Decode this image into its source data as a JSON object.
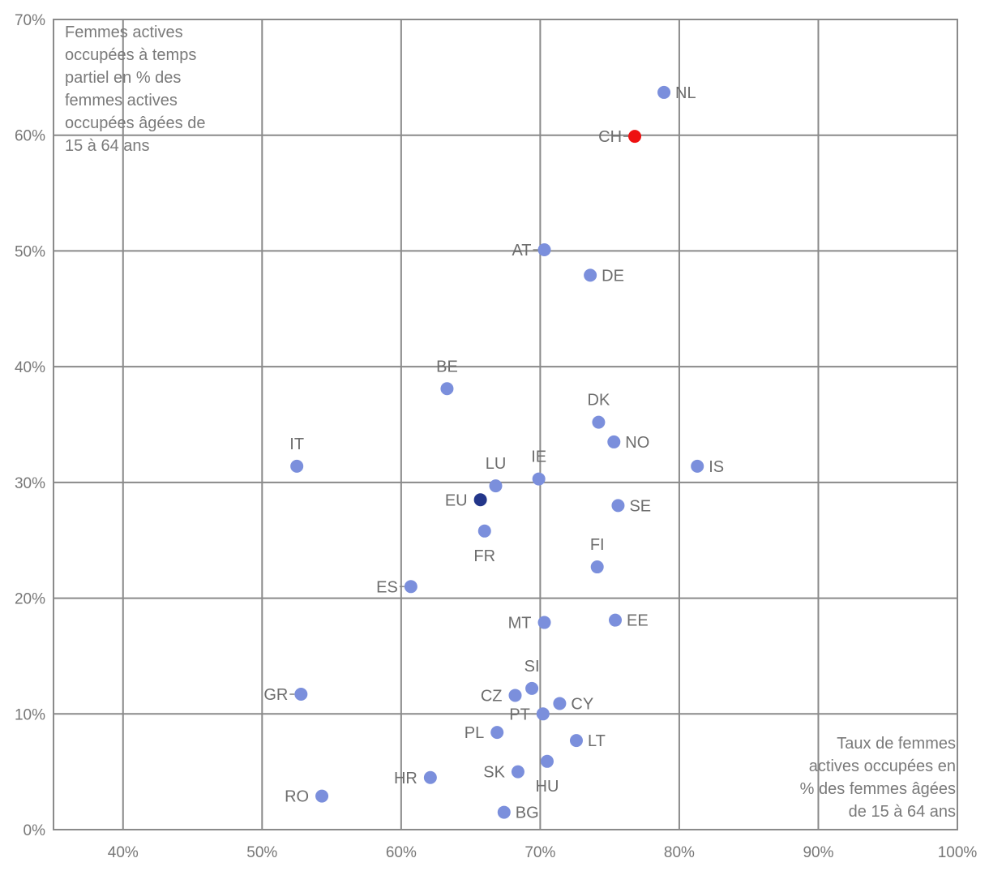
{
  "chart_data": {
    "type": "scatter",
    "xlabel": [
      "Taux de femmes",
      "actives occupées en",
      "% des femmes âgées",
      "de 15 à 64 ans"
    ],
    "ylabel": [
      "Femmes actives",
      "occupées à temps",
      "partiel en % des",
      "femmes actives",
      "occupées âgées de",
      "15 à 64 ans"
    ],
    "xlim": [
      35,
      100
    ],
    "ylim": [
      0,
      70
    ],
    "x_ticks": [
      40,
      50,
      60,
      70,
      80,
      90,
      100
    ],
    "y_ticks": [
      0,
      10,
      20,
      30,
      40,
      50,
      60,
      70
    ],
    "x_tick_labels": [
      "40%",
      "50%",
      "60%",
      "70%",
      "80%",
      "90%",
      "100%"
    ],
    "y_tick_labels": [
      "0%",
      "10%",
      "20%",
      "30%",
      "40%",
      "50%",
      "60%",
      "70%"
    ],
    "grid": true,
    "colors": {
      "default": "#7b8fdc",
      "highlight": "#ee1111",
      "aggregate": "#23368a"
    },
    "points": [
      {
        "label": "NL",
        "x": 78.9,
        "y": 63.7,
        "style": "default",
        "pos": "right"
      },
      {
        "label": "CH",
        "x": 76.8,
        "y": 59.9,
        "style": "highlight",
        "pos": "left",
        "leader": true
      },
      {
        "label": "AT",
        "x": 70.3,
        "y": 50.1,
        "style": "default",
        "pos": "left",
        "leader": true
      },
      {
        "label": "DE",
        "x": 73.6,
        "y": 47.9,
        "style": "default",
        "pos": "right"
      },
      {
        "label": "BE",
        "x": 63.3,
        "y": 38.1,
        "style": "default",
        "pos": "above"
      },
      {
        "label": "DK",
        "x": 74.2,
        "y": 35.2,
        "style": "default",
        "pos": "above"
      },
      {
        "label": "NO",
        "x": 75.3,
        "y": 33.5,
        "style": "default",
        "pos": "right"
      },
      {
        "label": "IT",
        "x": 52.5,
        "y": 31.4,
        "style": "default",
        "pos": "above"
      },
      {
        "label": "IS",
        "x": 81.3,
        "y": 31.4,
        "style": "default",
        "pos": "right"
      },
      {
        "label": "IE",
        "x": 69.9,
        "y": 30.3,
        "style": "default",
        "pos": "above"
      },
      {
        "label": "LU",
        "x": 66.8,
        "y": 29.7,
        "style": "default",
        "pos": "above"
      },
      {
        "label": "EU",
        "x": 65.7,
        "y": 28.5,
        "style": "aggregate",
        "pos": "left"
      },
      {
        "label": "SE",
        "x": 75.6,
        "y": 28.0,
        "style": "default",
        "pos": "right"
      },
      {
        "label": "FR",
        "x": 66.0,
        "y": 25.8,
        "style": "default",
        "pos": "below"
      },
      {
        "label": "FI",
        "x": 74.1,
        "y": 22.7,
        "style": "default",
        "pos": "above"
      },
      {
        "label": "ES",
        "x": 60.7,
        "y": 21.0,
        "style": "default",
        "pos": "left",
        "leader": true
      },
      {
        "label": "MT",
        "x": 70.3,
        "y": 17.9,
        "style": "default",
        "pos": "left"
      },
      {
        "label": "EE",
        "x": 75.4,
        "y": 18.1,
        "style": "default",
        "pos": "right"
      },
      {
        "label": "SI",
        "x": 69.4,
        "y": 12.2,
        "style": "default",
        "pos": "above"
      },
      {
        "label": "GR",
        "x": 52.8,
        "y": 11.7,
        "style": "default",
        "pos": "left",
        "leader": true
      },
      {
        "label": "CZ",
        "x": 68.2,
        "y": 11.6,
        "style": "default",
        "pos": "left"
      },
      {
        "label": "CY",
        "x": 71.4,
        "y": 10.9,
        "style": "default",
        "pos": "right"
      },
      {
        "label": "PT",
        "x": 70.2,
        "y": 10.0,
        "style": "default",
        "pos": "left",
        "leader": true
      },
      {
        "label": "PL",
        "x": 66.9,
        "y": 8.4,
        "style": "default",
        "pos": "left"
      },
      {
        "label": "LT",
        "x": 72.6,
        "y": 7.7,
        "style": "default",
        "pos": "right"
      },
      {
        "label": "HU",
        "x": 70.5,
        "y": 5.9,
        "style": "default",
        "pos": "below"
      },
      {
        "label": "SK",
        "x": 68.4,
        "y": 5.0,
        "style": "default",
        "pos": "left"
      },
      {
        "label": "HR",
        "x": 62.1,
        "y": 4.5,
        "style": "default",
        "pos": "left"
      },
      {
        "label": "RO",
        "x": 54.3,
        "y": 2.9,
        "style": "default",
        "pos": "left"
      },
      {
        "label": "BG",
        "x": 67.4,
        "y": 1.5,
        "style": "default",
        "pos": "right"
      }
    ]
  }
}
